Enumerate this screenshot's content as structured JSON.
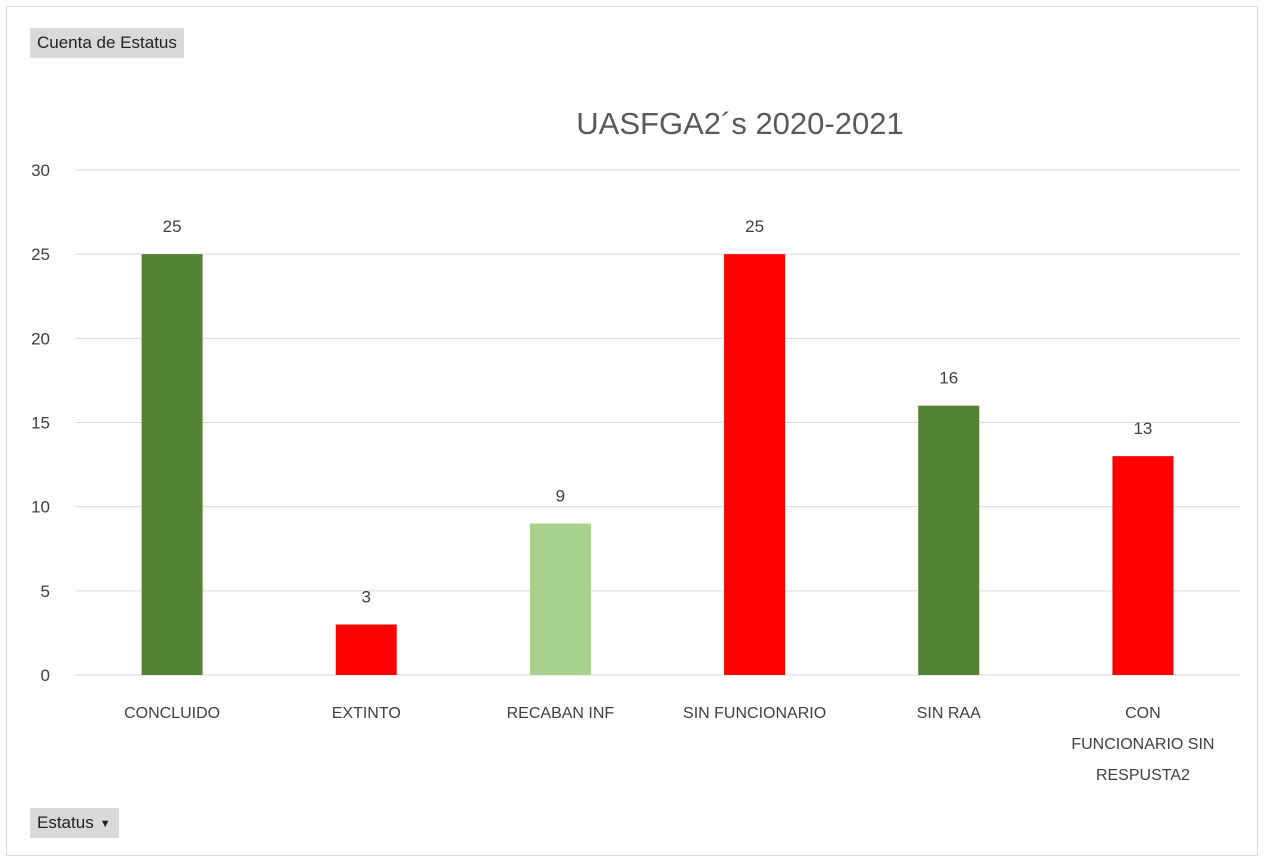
{
  "pivot": {
    "value_field": "Cuenta de Estatus",
    "row_field": "Estatus"
  },
  "colors": {
    "dark_green": "#548235",
    "light_green": "#a9d18e",
    "red": "#ff0000",
    "gridline": "#d9d9d9"
  },
  "icons": {
    "row_field_dropdown": "dropdown-arrow-icon"
  },
  "chart_data": {
    "type": "bar",
    "title": "UASFGA2´s   2020-2021",
    "xlabel": "",
    "ylabel": "",
    "ylim": [
      0,
      30
    ],
    "yticks": [
      0,
      5,
      10,
      15,
      20,
      25,
      30
    ],
    "grid": true,
    "legend": "none",
    "categories": [
      [
        "CONCLUIDO"
      ],
      [
        "EXTINTO"
      ],
      [
        "RECABAN INF"
      ],
      [
        "SIN FUNCIONARIO"
      ],
      [
        "SIN RAA"
      ],
      [
        "CON",
        "FUNCIONARIO SIN",
        "RESPUSTA2"
      ]
    ],
    "values": [
      25,
      3,
      9,
      25,
      16,
      13
    ],
    "bar_colors": [
      "#548235",
      "#ff0000",
      "#a9d18e",
      "#ff0000",
      "#548235",
      "#ff0000"
    ],
    "data_labels": [
      "25",
      "3",
      "9",
      "25",
      "16",
      "13"
    ]
  }
}
